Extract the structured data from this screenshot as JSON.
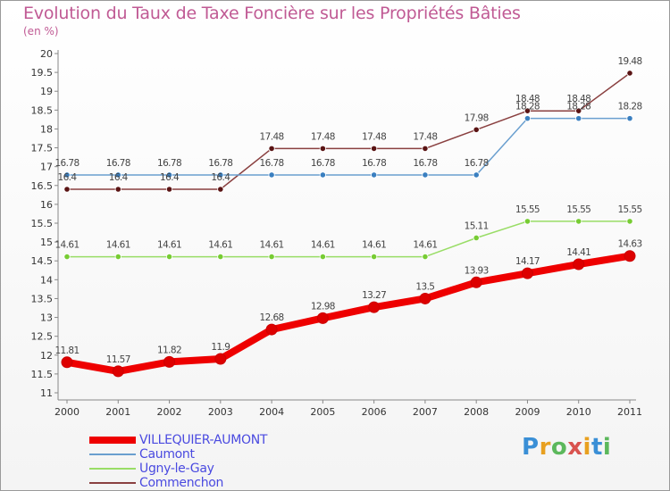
{
  "title": "Evolution du Taux de Taxe Foncière sur les Propriétés Bâties",
  "unit": "(en %)",
  "logo": {
    "letters": [
      "P",
      "r",
      "o",
      "x",
      "i",
      "t",
      "i"
    ],
    "colors": [
      "#3a8fd6",
      "#e8a020",
      "#5cb85c",
      "#d9534f",
      "#e8a020",
      "#3a8fd6",
      "#5cb85c"
    ]
  },
  "chart_data": {
    "type": "line",
    "title": "Evolution du Taux de Taxe Foncière sur les Propriétés Bâties",
    "ylabel": "(en %)",
    "xlabel": "",
    "x": [
      "2000",
      "2001",
      "2002",
      "2003",
      "2004",
      "2005",
      "2006",
      "2007",
      "2008",
      "2009",
      "2010",
      "2011"
    ],
    "ylim": [
      11,
      20
    ],
    "yticks": [
      "11",
      "11.5",
      "12",
      "12.5",
      "13",
      "13.5",
      "14",
      "14.5",
      "15",
      "15.5",
      "16",
      "16.5",
      "17",
      "17.5",
      "18",
      "18.5",
      "19",
      "19.5",
      "20"
    ],
    "grid": false,
    "legend": "bottom-left",
    "series": [
      {
        "name": "VILLEQUIER-AUMONT",
        "color": "#ee0000",
        "marker": "#dd0000",
        "values": [
          11.81,
          11.57,
          11.82,
          11.9,
          12.68,
          12.98,
          13.27,
          13.5,
          13.93,
          14.17,
          14.41,
          14.63
        ],
        "labels": [
          "11.81",
          "11.57",
          "11.82",
          "11.9",
          "12.68",
          "12.98",
          "13.27",
          "13.5",
          "13.93",
          "14.17",
          "14.41",
          "14.63"
        ]
      },
      {
        "name": "Caumont",
        "color": "#6a9fcf",
        "marker": "#3a7fc0",
        "values": [
          16.78,
          16.78,
          16.78,
          16.78,
          16.78,
          16.78,
          16.78,
          16.78,
          16.78,
          18.28,
          18.28,
          18.28
        ],
        "labels": [
          "16.78",
          "16.78",
          "16.78",
          "16.78",
          "16.78",
          "16.78",
          "16.78",
          "16.78",
          "16.78",
          "18.28",
          "18.28",
          "18.28"
        ]
      },
      {
        "name": "Ugny-le-Gay",
        "color": "#99dd66",
        "marker": "#77cc33",
        "values": [
          14.61,
          14.61,
          14.61,
          14.61,
          14.61,
          14.61,
          14.61,
          14.61,
          15.11,
          15.55,
          15.55,
          15.55
        ],
        "labels": [
          "14.61",
          "14.61",
          "14.61",
          "14.61",
          "14.61",
          "14.61",
          "14.61",
          "14.61",
          "15.11",
          "15.55",
          "15.55",
          "15.55"
        ]
      },
      {
        "name": "Commenchon",
        "color": "#8a4040",
        "marker": "#5a1414",
        "values": [
          16.4,
          16.4,
          16.4,
          16.4,
          17.48,
          17.48,
          17.48,
          17.48,
          17.98,
          18.48,
          18.48,
          19.48
        ],
        "labels": [
          "16.4",
          "16.4",
          "16.4",
          "16.4",
          "17.48",
          "17.48",
          "17.48",
          "17.48",
          "17.98",
          "18.48",
          "18.48",
          "19.48"
        ]
      }
    ]
  }
}
